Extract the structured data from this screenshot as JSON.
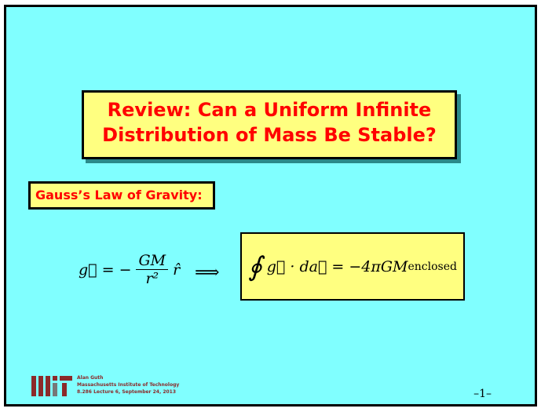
{
  "slide": {
    "title_line1": "Review:  Can a Uniform Infinite",
    "title_line2": "Distribution of Mass Be Stable?",
    "subheading": "Gauss’s Law of Gravity:",
    "equation_left": {
      "lhs": "g⃗ = −",
      "num": "GM",
      "den": "r²",
      "rhat": "r̂"
    },
    "implies": "⟹",
    "equation_box": {
      "integral": "∮",
      "body": "g⃗ · da⃗ = −4πGM",
      "subscript": "enclosed"
    },
    "footer": {
      "author": "Alan Guth",
      "institution": "Massachusetts Institute of Technology",
      "lecture": "8.286 Lecture 6, September 24, 2013"
    },
    "page_number": "–1–",
    "logo": "MIT"
  },
  "colors": {
    "background": "#80ffff",
    "box": "#ffff80",
    "title_text": "#ff0000",
    "logo": "#8b2a2a"
  }
}
